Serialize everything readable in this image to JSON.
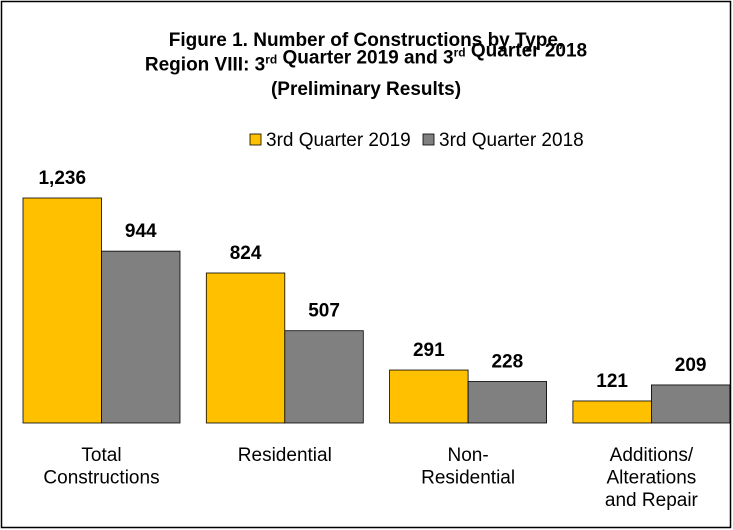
{
  "chart_data": {
    "type": "bar",
    "title": [
      [
        "Figure 1. Number of Constructions by Type,"
      ],
      [
        "Region VIII: 3",
        {
          "sup": "rd"
        },
        " Quarter 2019 and 3",
        {
          "sup": "rd"
        },
        " Quarter 2018"
      ],
      [
        "(Preliminary Results)"
      ]
    ],
    "categories": [
      [
        "Total",
        "Constructions"
      ],
      [
        "Residential"
      ],
      [
        "Non-",
        "Residential"
      ],
      [
        "Additions/",
        "Alterations",
        "and Repair"
      ]
    ],
    "series": [
      {
        "name": "3rd Quarter 2019",
        "color": "#ffc000",
        "values": [
          1236,
          824,
          291,
          121
        ],
        "value_labels": [
          "1,236",
          "824",
          "291",
          "121"
        ]
      },
      {
        "name": "3rd Quarter 2018",
        "color": "#808080",
        "values": [
          944,
          507,
          228,
          209
        ]
      }
    ]
  }
}
